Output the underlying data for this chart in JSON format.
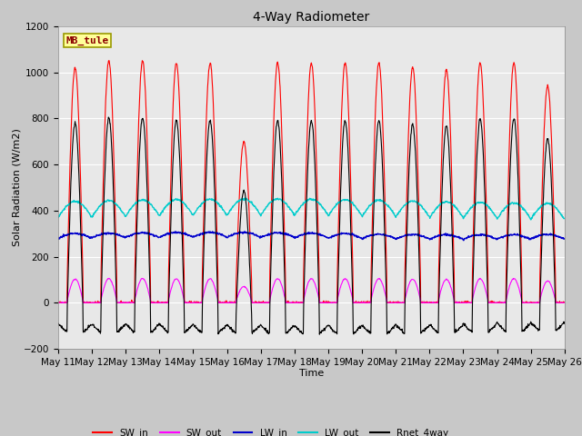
{
  "title": "4-Way Radiometer",
  "xlabel": "Time",
  "ylabel": "Solar Radiation (W/m2)",
  "ylim": [
    -200,
    1200
  ],
  "yticks": [
    -200,
    0,
    200,
    400,
    600,
    800,
    1000,
    1200
  ],
  "x_tick_labels": [
    "May 11",
    "May 12",
    "May 13",
    "May 14",
    "May 15",
    "May 16",
    "May 17",
    "May 18",
    "May 19",
    "May 20",
    "May 21",
    "May 22",
    "May 23",
    "May 24",
    "May 25",
    "May 26"
  ],
  "station_label": "MB_tule",
  "station_label_color": "#8B0000",
  "station_box_facecolor": "#FFFF99",
  "station_box_edgecolor": "#999900",
  "colors": {
    "SW_in": "#FF0000",
    "SW_out": "#FF00FF",
    "LW_in": "#0000CC",
    "LW_out": "#00CCCC",
    "Rnet_4way": "#000000"
  },
  "legend_entries": [
    "SW_in",
    "SW_out",
    "LW_in",
    "LW_out",
    "Rnet_4way"
  ],
  "background_color": "#C8C8C8",
  "plot_bg_color": "#E8E8E8",
  "n_days": 15,
  "peaks": [
    1020,
    1050,
    1050,
    1040,
    1040,
    700,
    1040,
    1040,
    1040,
    1040,
    1020,
    1010,
    1040,
    1040,
    940
  ]
}
